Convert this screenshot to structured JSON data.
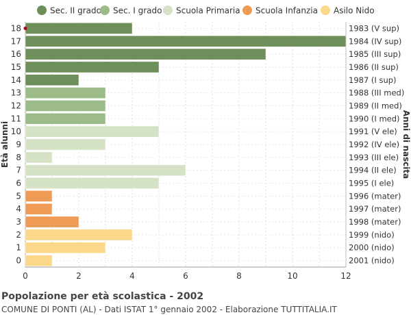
{
  "chart_data": {
    "type": "bar",
    "orientation": "horizontal",
    "title": "Popolazione per età scolastica - 2002",
    "subtitle": "COMUNE DI PONTI (AL) - Dati ISTAT 1° gennaio 2002 - Elaborazione TUTTITALIA.IT",
    "ylabel_left": "Età alunni",
    "ylabel_right": "Anni di nascita",
    "xlim": [
      0,
      12
    ],
    "xticks": [
      0,
      2,
      4,
      6,
      8,
      10,
      12
    ],
    "grid": true,
    "legend_position": "top",
    "legend": [
      {
        "key": "sec2",
        "label": "Sec. II grado",
        "color": "#6e8f5a"
      },
      {
        "key": "sec1",
        "label": "Sec. I grado",
        "color": "#9dbb88"
      },
      {
        "key": "prim",
        "label": "Scuola Primaria",
        "color": "#d5e2c5"
      },
      {
        "key": "inf",
        "label": "Scuola Infanzia",
        "color": "#ee9c55"
      },
      {
        "key": "nido",
        "label": "Asilo Nido",
        "color": "#fcd88a"
      }
    ],
    "rows": [
      {
        "age": "18",
        "birth": "1983 (V sup)",
        "value": 4,
        "group": "sec2"
      },
      {
        "age": "17",
        "birth": "1984 (IV sup)",
        "value": 12,
        "group": "sec2"
      },
      {
        "age": "16",
        "birth": "1985 (III sup)",
        "value": 9,
        "group": "sec2"
      },
      {
        "age": "15",
        "birth": "1986 (II sup)",
        "value": 5,
        "group": "sec2"
      },
      {
        "age": "14",
        "birth": "1987 (I sup)",
        "value": 2,
        "group": "sec2"
      },
      {
        "age": "13",
        "birth": "1988 (III med)",
        "value": 3,
        "group": "sec1"
      },
      {
        "age": "12",
        "birth": "1989 (II med)",
        "value": 3,
        "group": "sec1"
      },
      {
        "age": "11",
        "birth": "1990 (I med)",
        "value": 3,
        "group": "sec1"
      },
      {
        "age": "10",
        "birth": "1991 (V ele)",
        "value": 5,
        "group": "prim"
      },
      {
        "age": "9",
        "birth": "1992 (IV ele)",
        "value": 3,
        "group": "prim"
      },
      {
        "age": "8",
        "birth": "1993 (III ele)",
        "value": 1,
        "group": "prim"
      },
      {
        "age": "7",
        "birth": "1994 (II ele)",
        "value": 6,
        "group": "prim"
      },
      {
        "age": "6",
        "birth": "1995 (I ele)",
        "value": 5,
        "group": "prim"
      },
      {
        "age": "5",
        "birth": "1996 (mater)",
        "value": 1,
        "group": "inf"
      },
      {
        "age": "4",
        "birth": "1997 (mater)",
        "value": 1,
        "group": "inf"
      },
      {
        "age": "3",
        "birth": "1998 (mater)",
        "value": 2,
        "group": "inf"
      },
      {
        "age": "2",
        "birth": "1999 (nido)",
        "value": 4,
        "group": "nido"
      },
      {
        "age": "1",
        "birth": "2000 (nido)",
        "value": 3,
        "group": "nido"
      },
      {
        "age": "0",
        "birth": "2001 (nido)",
        "value": 1,
        "group": "nido"
      }
    ]
  }
}
